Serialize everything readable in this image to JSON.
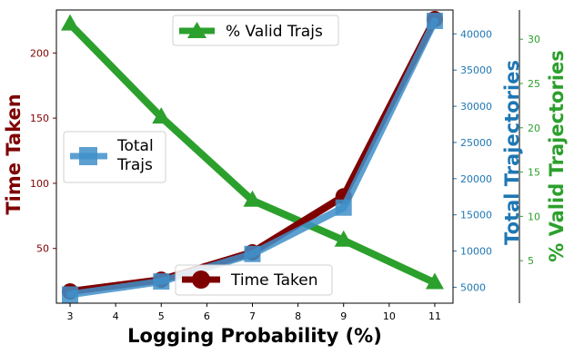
{
  "chart_data": {
    "type": "line",
    "xlabel": "Logging Probability (%)",
    "x": [
      3,
      5,
      7,
      9,
      11
    ],
    "xticks": [
      3,
      4,
      5,
      6,
      7,
      8,
      9,
      10,
      11
    ],
    "xlim": [
      2.7,
      11.4
    ],
    "series": [
      {
        "name": "Time Taken",
        "axis": "left",
        "values": [
          17,
          26,
          47,
          90,
          226
        ],
        "color": "#7f0000",
        "marker": "circle"
      },
      {
        "name": "Total Trajs",
        "axis": "right1",
        "values": [
          4000,
          5800,
          9600,
          16000,
          41800
        ],
        "color": "#3f8fc9",
        "marker": "square"
      },
      {
        "name": "% Valid Trajs",
        "axis": "right2",
        "values": [
          31.7,
          21.2,
          11.8,
          7.3,
          2.5
        ],
        "color": "#2ca02c",
        "marker": "triangle"
      }
    ],
    "axes": {
      "left": {
        "label": "Time Taken",
        "color": "#7f0000",
        "ylim": [
          8,
          233
        ],
        "ticks": [
          50,
          100,
          150,
          200
        ]
      },
      "right1": {
        "label": "Total Trajectories",
        "color": "#1f77b4",
        "ylim": [
          2800,
          43300
        ],
        "ticks": [
          5000,
          10000,
          15000,
          20000,
          25000,
          30000,
          35000,
          40000
        ]
      },
      "right2": {
        "label": "% Valid Trajectories",
        "color": "#2ca02c",
        "ylim": [
          0.2,
          33.3
        ],
        "ticks": [
          5,
          10,
          15,
          20,
          25,
          30
        ]
      }
    },
    "legends": {
      "valid": "% Valid Trajs",
      "total": [
        "Total",
        "Trajs"
      ],
      "time": "Time Taken"
    },
    "grid": false
  }
}
